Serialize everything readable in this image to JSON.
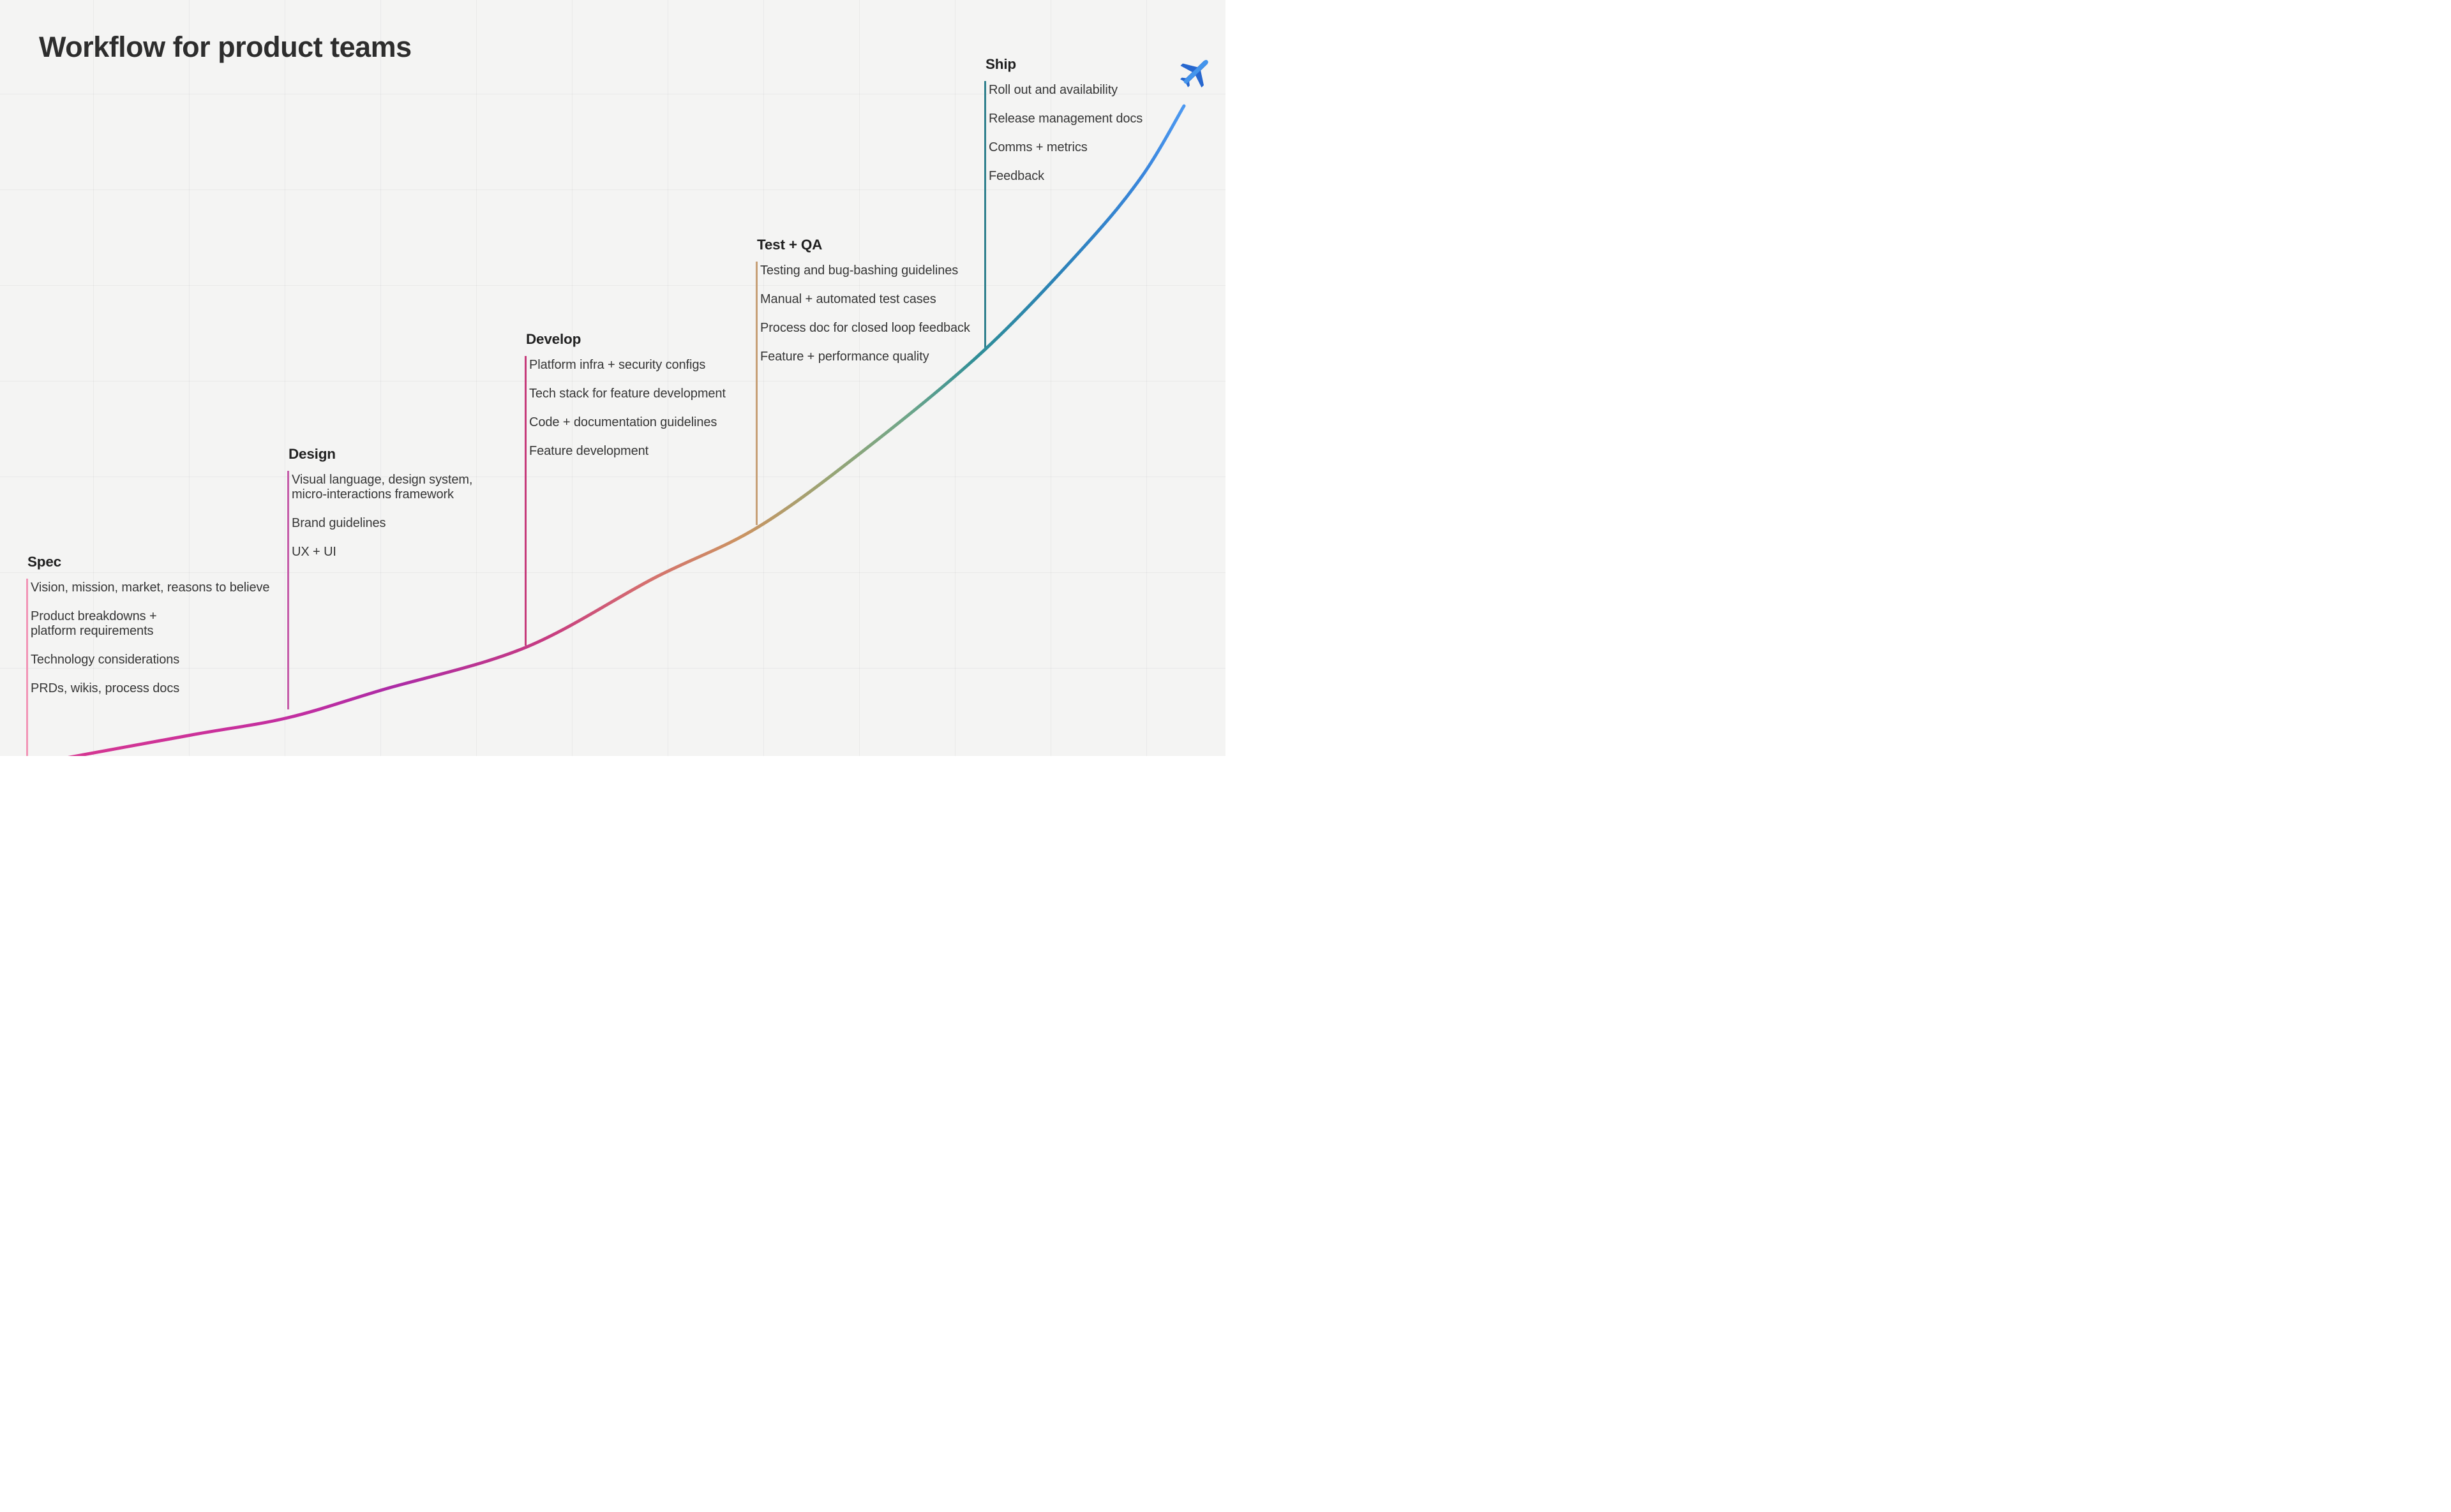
{
  "title": "Workflow for product teams",
  "background": {
    "color": "#f4f4f3",
    "grid_color": "rgba(0,0,0,0.045)"
  },
  "stages": [
    {
      "name": "Spec",
      "line_color": "#F294B6",
      "items": [
        "Vision, mission, market, reasons to believe",
        "Product breakdowns +\nplatform requirements",
        "Technology considerations",
        "PRDs, wikis, process docs"
      ]
    },
    {
      "name": "Design",
      "line_color": "#C55CA9",
      "items": [
        "Visual language, design system,\nmicro-interactions framework",
        "Brand guidelines",
        "UX + UI"
      ]
    },
    {
      "name": "Develop",
      "line_color": "#C63B7B",
      "items": [
        "Platform infra + security configs",
        "Tech stack for feature development",
        "Code + documentation guidelines",
        "Feature development"
      ]
    },
    {
      "name": "Test + QA",
      "line_color": "#C7A077",
      "items": [
        "Testing and bug-bashing guidelines",
        "Manual + automated test cases",
        "Process doc for closed loop feedback",
        "Feature + performance quality"
      ]
    },
    {
      "name": "Ship",
      "line_color": "#2F808D",
      "items": [
        "Roll out and availability",
        "Release management docs",
        "Comms + metrics",
        "Feedback"
      ]
    }
  ],
  "curve": {
    "width": 5,
    "points": [
      [
        60,
        1196
      ],
      [
        300,
        1152
      ],
      [
        451,
        1125
      ],
      [
        600,
        1081
      ],
      [
        823,
        1015
      ],
      [
        1025,
        906
      ],
      [
        1188,
        826
      ],
      [
        1361,
        700
      ],
      [
        1543,
        548
      ],
      [
        1700,
        385
      ],
      [
        1790,
        275
      ],
      [
        1855,
        166
      ]
    ],
    "gradient": [
      {
        "offset": 0,
        "color": "#D8398F"
      },
      {
        "offset": 0.134,
        "color": "#CC3199"
      },
      {
        "offset": 0.234,
        "color": "#C02EA1"
      },
      {
        "offset": 0.312,
        "color": "#AC2BA6"
      },
      {
        "offset": 0.446,
        "color": "#C73C80"
      },
      {
        "offset": 0.529,
        "color": "#D56F6F"
      },
      {
        "offset": 0.613,
        "color": "#CB9361"
      },
      {
        "offset": 0.691,
        "color": "#98A575"
      },
      {
        "offset": 0.758,
        "color": "#6FA689"
      },
      {
        "offset": 0.819,
        "color": "#2F8E97"
      },
      {
        "offset": 0.891,
        "color": "#2C82B8"
      },
      {
        "offset": 0.964,
        "color": "#3A86DC"
      },
      {
        "offset": 1,
        "color": "#4D99F1"
      }
    ]
  },
  "plane": {
    "body_color": "#4495EC",
    "wing_color": "#2767CF"
  }
}
